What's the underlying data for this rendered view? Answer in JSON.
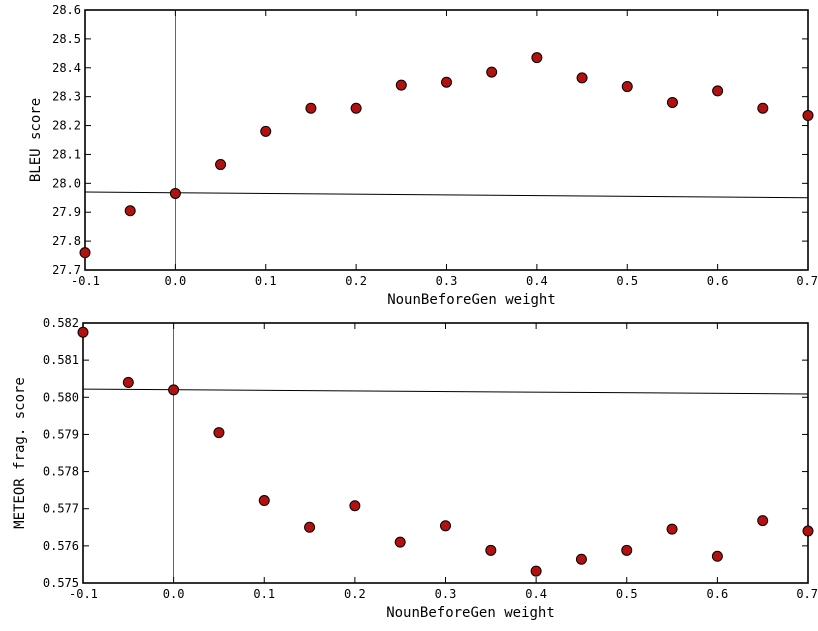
{
  "chart_data": [
    {
      "type": "scatter",
      "xlabel": "NounBeforeGen weight",
      "ylabel": "BLEU score",
      "xlim": [
        -0.1,
        0.7
      ],
      "ylim": [
        27.7,
        28.6
      ],
      "xticks": [
        -0.1,
        0.0,
        0.1,
        0.2,
        0.3,
        0.4,
        0.5,
        0.6,
        0.7
      ],
      "xtick_labels": [
        "-0.1",
        "0.0",
        "0.1",
        "0.2",
        "0.3",
        "0.4",
        "0.5",
        "0.6",
        "0.7"
      ],
      "yticks": [
        27.7,
        27.8,
        27.9,
        28.0,
        28.1,
        28.2,
        28.3,
        28.4,
        28.5,
        28.6
      ],
      "ytick_labels": [
        "27.7",
        "27.8",
        "27.9",
        "28.0",
        "28.1",
        "28.2",
        "28.3",
        "28.4",
        "28.5",
        "28.6"
      ],
      "grid": false,
      "point_color": "#b31010",
      "baseline": {
        "x": [
          -0.1,
          0.7
        ],
        "y": [
          27.97,
          27.95
        ]
      },
      "x": [
        -0.1,
        -0.05,
        0.0,
        0.05,
        0.1,
        0.15,
        0.2,
        0.25,
        0.3,
        0.35,
        0.4,
        0.45,
        0.5,
        0.55,
        0.6,
        0.65,
        0.7
      ],
      "y": [
        27.76,
        27.905,
        27.965,
        28.065,
        28.18,
        28.26,
        28.26,
        28.34,
        28.35,
        28.385,
        28.435,
        28.365,
        28.335,
        28.28,
        28.32,
        28.26,
        28.235
      ]
    },
    {
      "type": "scatter",
      "xlabel": "NounBeforeGen weight",
      "ylabel": "METEOR frag. score",
      "xlim": [
        -0.1,
        0.7
      ],
      "ylim": [
        0.575,
        0.582
      ],
      "xticks": [
        -0.1,
        0.0,
        0.1,
        0.2,
        0.3,
        0.4,
        0.5,
        0.6,
        0.7
      ],
      "xtick_labels": [
        "-0.1",
        "0.0",
        "0.1",
        "0.2",
        "0.3",
        "0.4",
        "0.5",
        "0.6",
        "0.7"
      ],
      "yticks": [
        0.575,
        0.576,
        0.577,
        0.578,
        0.579,
        0.58,
        0.581,
        0.582
      ],
      "ytick_labels": [
        "0.575",
        "0.576",
        "0.577",
        "0.578",
        "0.579",
        "0.580",
        "0.581",
        "0.582"
      ],
      "grid": false,
      "point_color": "#b31010",
      "baseline": {
        "x": [
          -0.1,
          0.7
        ],
        "y": [
          0.58022,
          0.58009
        ]
      },
      "x": [
        -0.1,
        -0.05,
        0.0,
        0.05,
        0.1,
        0.15,
        0.2,
        0.25,
        0.3,
        0.35,
        0.4,
        0.45,
        0.5,
        0.55,
        0.6,
        0.65,
        0.7
      ],
      "y": [
        0.58175,
        0.5804,
        0.5802,
        0.57905,
        0.57722,
        0.5765,
        0.57708,
        0.5761,
        0.57654,
        0.57588,
        0.57532,
        0.57564,
        0.57588,
        0.57645,
        0.57572,
        0.57668,
        0.5764
      ]
    }
  ]
}
